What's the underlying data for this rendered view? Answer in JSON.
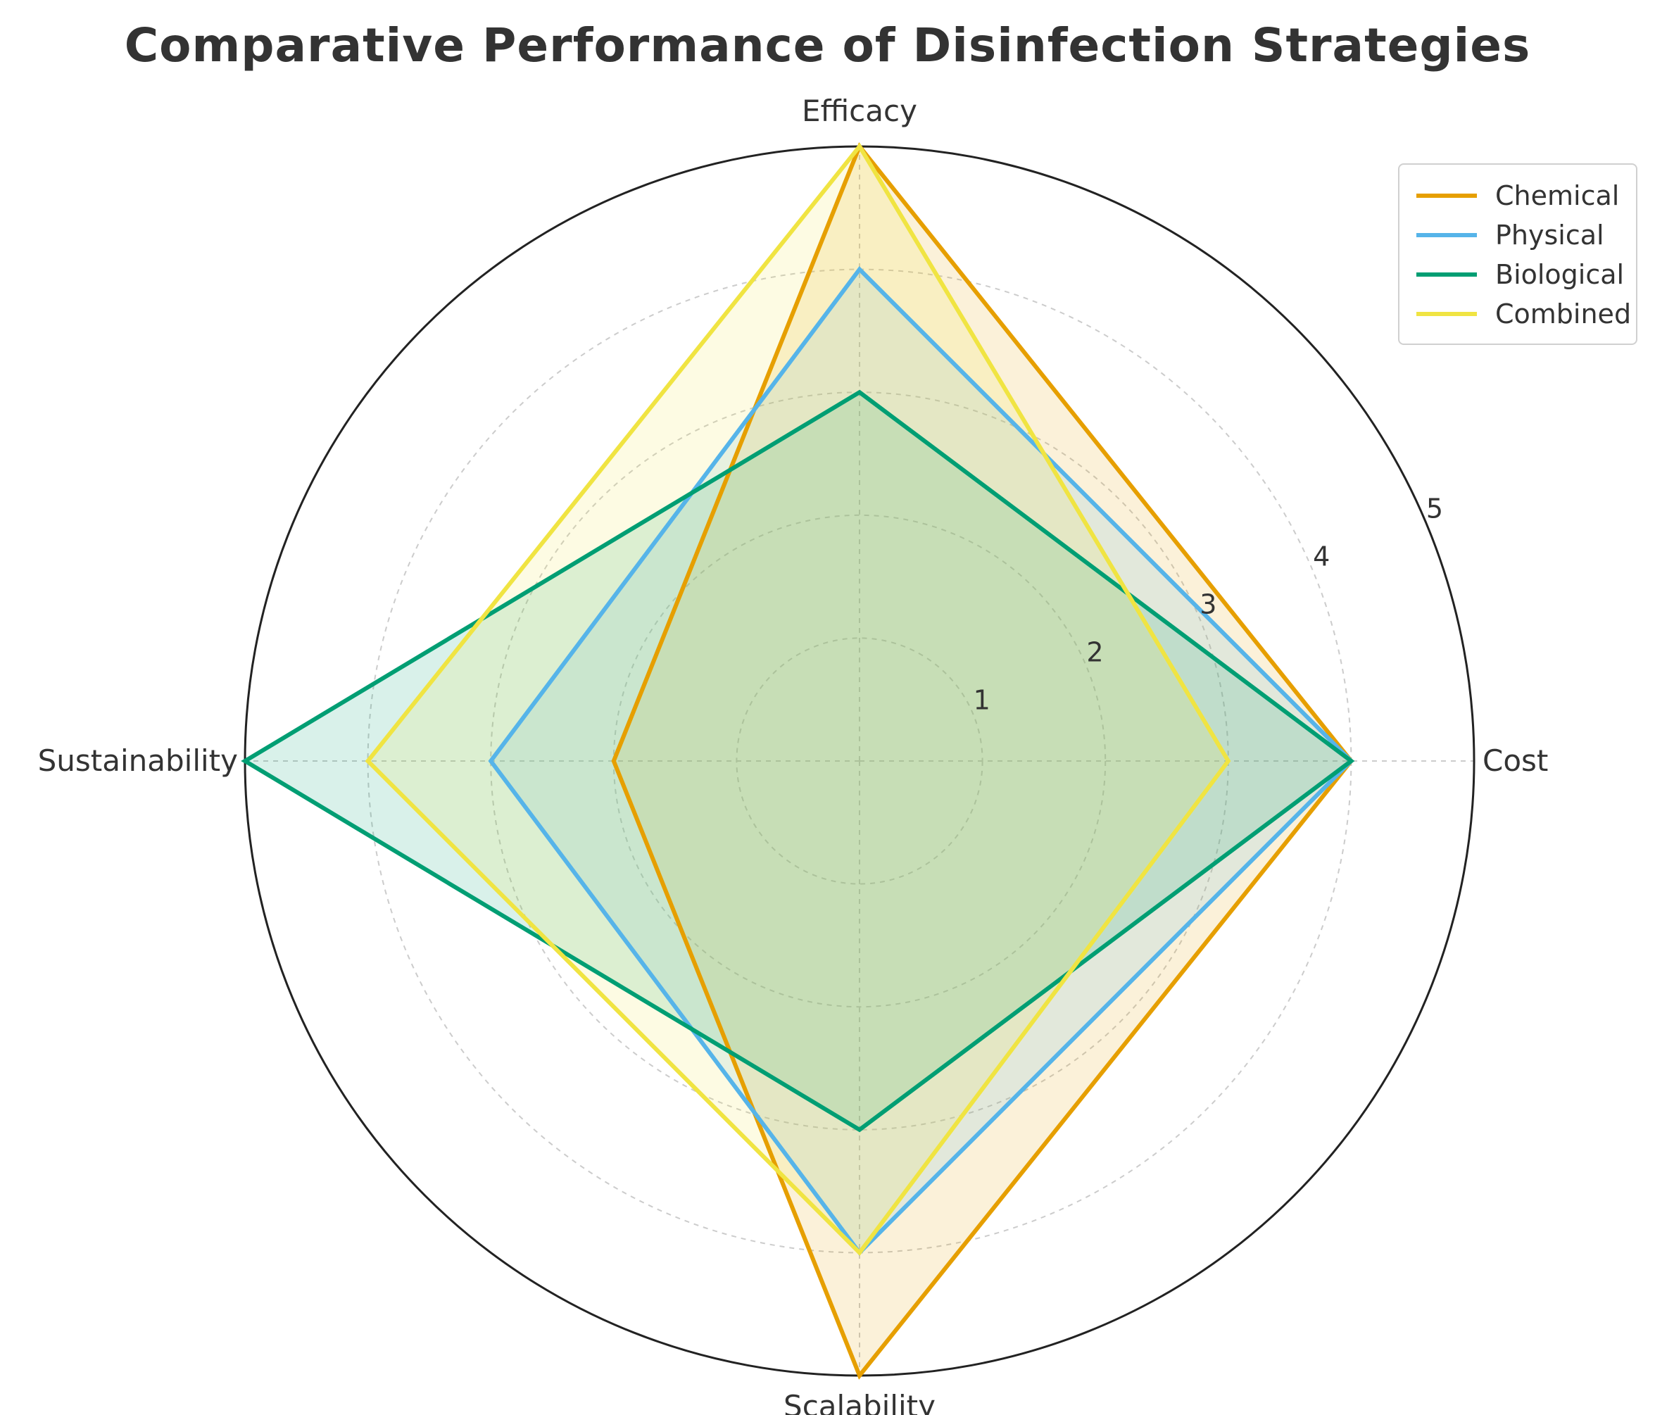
{
  "chart_data": {
    "type": "radar",
    "title": "Comparative Performance of Disinfection Strategies",
    "axes": [
      "Efficacy",
      "Cost",
      "Scalability",
      "Sustainability"
    ],
    "rlim": [
      0,
      5
    ],
    "r_ticks": [
      "1",
      "2",
      "3",
      "4",
      "5"
    ],
    "grid": true,
    "legend_position": "top-right",
    "series": [
      {
        "name": "Chemical",
        "color": "#E69F00",
        "values": [
          5,
          4,
          5,
          2
        ]
      },
      {
        "name": "Physical",
        "color": "#56B4E9",
        "values": [
          4,
          4,
          4,
          3
        ]
      },
      {
        "name": "Biological",
        "color": "#009E73",
        "values": [
          3,
          4,
          3,
          5
        ]
      },
      {
        "name": "Combined",
        "color": "#F0E442",
        "values": [
          5,
          3,
          4,
          4
        ]
      }
    ]
  }
}
